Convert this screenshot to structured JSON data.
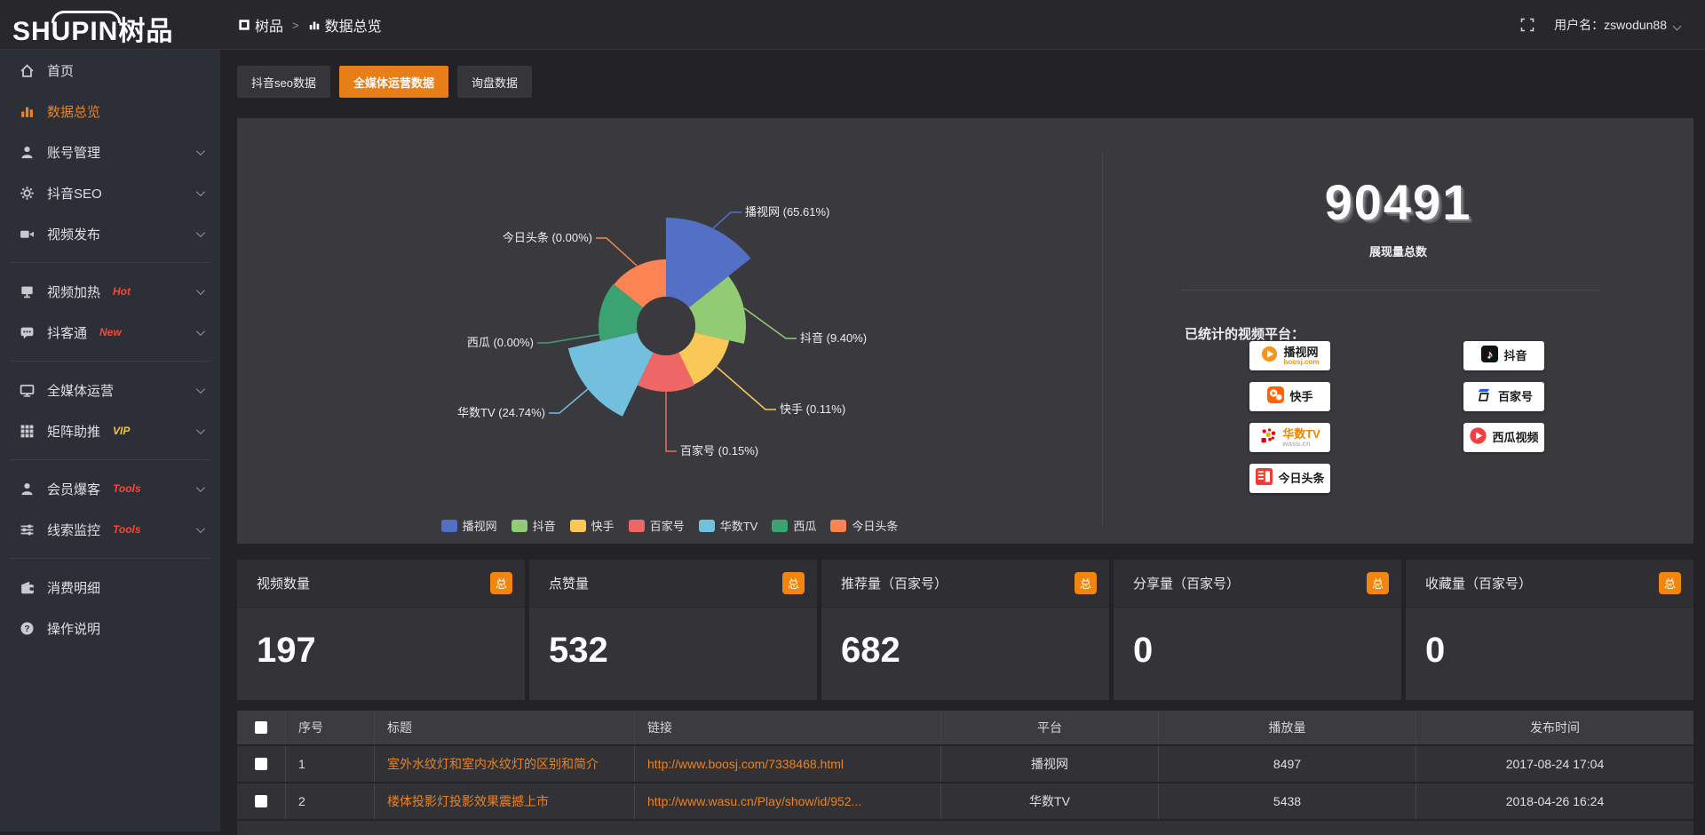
{
  "logo": {
    "en": "SHUPIN",
    "cn": "树品"
  },
  "topbar": {
    "breadcrumb_home": "树品",
    "breadcrumb_sep": ">",
    "breadcrumb_page": "数据总览",
    "username": "用户名：zswodun88"
  },
  "sidebar": {
    "groups": [
      [
        {
          "icon": "home-icon",
          "label": "首页"
        },
        {
          "icon": "bar-chart-icon",
          "label": "数据总览",
          "active": true
        },
        {
          "icon": "user-icon",
          "label": "账号管理",
          "chevron": true
        },
        {
          "icon": "gear-icon",
          "label": "抖音SEO",
          "chevron": true
        },
        {
          "icon": "video-camera-icon",
          "label": "视频发布",
          "chevron": true
        }
      ],
      [
        {
          "icon": "display-icon",
          "label": "视频加热",
          "tag": "Hot",
          "tag_color": "#f5483b",
          "chevron": true
        },
        {
          "icon": "chat-icon",
          "label": "抖客通",
          "tag": "New",
          "tag_color": "#f5483b",
          "chevron": true
        }
      ],
      [
        {
          "icon": "monitor-icon",
          "label": "全媒体运营",
          "chevron": true
        },
        {
          "icon": "grid-icon",
          "label": "矩阵助推",
          "tag": "VIP",
          "tag_color": "#f2c33f",
          "chevron": true
        }
      ],
      [
        {
          "icon": "user-icon",
          "label": "会员爆客",
          "tag": "Tools",
          "tag_color": "#f5483b",
          "chevron": true
        },
        {
          "icon": "sliders-icon",
          "label": "线索监控",
          "tag": "Tools",
          "tag_color": "#f5483b",
          "chevron": true
        }
      ],
      [
        {
          "icon": "wallet-icon",
          "label": "消费明细"
        },
        {
          "icon": "question-icon",
          "label": "操作说明"
        }
      ]
    ]
  },
  "tabs": [
    {
      "label": "抖音seo数据",
      "active": false
    },
    {
      "label": "全媒体运营数据",
      "active": true
    },
    {
      "label": "询盘数据",
      "active": false
    }
  ],
  "chart_data": {
    "type": "pie",
    "style": "nightingale-rose",
    "legend_position": "bottom",
    "slices": [
      {
        "name": "播视网",
        "pct": 65.61,
        "label": "播视网 (65.61%)",
        "color": "#5470c6",
        "r": 122
      },
      {
        "name": "抖音",
        "pct": 9.4,
        "label": "抖音 (9.40%)",
        "color": "#91cc75",
        "r": 90
      },
      {
        "name": "快手",
        "pct": 0.11,
        "label": "快手 (0.11%)",
        "color": "#fac858",
        "r": 73
      },
      {
        "name": "百家号",
        "pct": 0.15,
        "label": "百家号 (0.15%)",
        "color": "#ee6666",
        "r": 74
      },
      {
        "name": "华数TV",
        "pct": 24.74,
        "label": "华数TV (24.74%)",
        "color": "#73c0de",
        "r": 113
      },
      {
        "name": "西瓜",
        "pct": 0.0,
        "label": "西瓜 (0.00%)",
        "color": "#3ba272",
        "r": 76
      },
      {
        "name": "今日头条",
        "pct": 0.0,
        "label": "今日头条 (0.00%)",
        "color": "#fc8452",
        "r": 75
      }
    ]
  },
  "summary": {
    "total_value": "90491",
    "total_caption": "展现量总数",
    "platforms_title": "已统计的视频平台："
  },
  "platforms": [
    {
      "type": "boosj",
      "name": "播视网",
      "sub": "boosj.com",
      "sub_color": "#f7941d"
    },
    {
      "type": "douyin",
      "name": "抖音"
    },
    {
      "type": "kuaishou",
      "name": "快手"
    },
    {
      "type": "baijiahao",
      "name": "百家号"
    },
    {
      "type": "wasu",
      "name": "华数TV",
      "sub": "wasu.cn",
      "sub_color": "#b9b9bd",
      "name_color": "#f08300"
    },
    {
      "type": "xigua",
      "name": "西瓜视频"
    },
    {
      "type": "toutiao",
      "name": "今日头条"
    }
  ],
  "stat_cards": [
    {
      "label": "视频数量",
      "badge": "总",
      "value": "197"
    },
    {
      "label": "点赞量",
      "badge": "总",
      "value": "532"
    },
    {
      "label": "推荐量（百家号）",
      "badge": "总",
      "value": "682"
    },
    {
      "label": "分享量（百家号）",
      "badge": "总",
      "value": "0"
    },
    {
      "label": "收藏量（百家号）",
      "badge": "总",
      "value": "0"
    }
  ],
  "table": {
    "headers": [
      "序号",
      "标题",
      "链接",
      "平台",
      "播放量",
      "发布时间"
    ],
    "rows": [
      {
        "no": "1",
        "title": "室外水纹灯和室内水纹灯的区别和简介",
        "link": "http://www.boosj.com/7338468.html",
        "platform": "播视网",
        "views": "8497",
        "time": "2017-08-24 17:04"
      },
      {
        "no": "2",
        "title": "楼体投影灯投影效果震撼上市",
        "link": "http://www.wasu.cn/Play/show/id/952...",
        "platform": "华数TV",
        "views": "5438",
        "time": "2018-04-26 16:24"
      }
    ]
  }
}
